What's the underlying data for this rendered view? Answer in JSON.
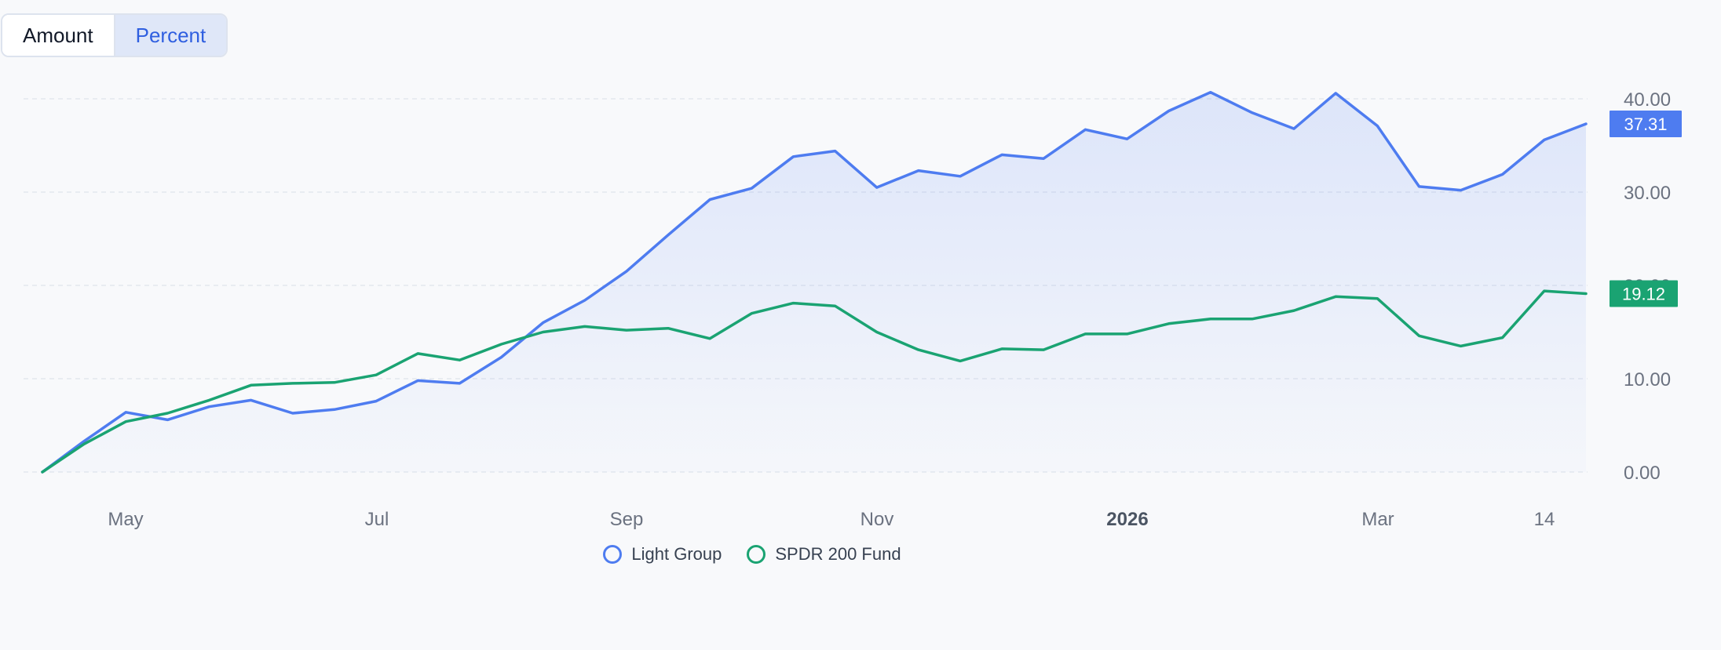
{
  "toggle": {
    "amount_label": "Amount",
    "percent_label": "Percent",
    "selected": "Percent"
  },
  "chart_data": {
    "type": "area",
    "x_tick_labels": [
      "May",
      "Jul",
      "Sep",
      "Nov",
      "2026",
      "Mar",
      "14"
    ],
    "y_tick_labels": [
      "0.00",
      "10.00",
      "20.00",
      "30.00",
      "40.00"
    ],
    "ylim": [
      0,
      40
    ],
    "grid": "horizontal dashed",
    "legend_position": "bottom-center",
    "series": [
      {
        "name": "Light Group",
        "color": "#4e7cf0",
        "fill": true,
        "last_value_label": "37.31",
        "values": [
          0.0,
          3.3,
          6.4,
          5.6,
          7.0,
          7.7,
          6.3,
          6.7,
          7.6,
          9.8,
          9.5,
          12.3,
          16.0,
          18.4,
          21.5,
          25.4,
          29.2,
          30.4,
          33.8,
          34.4,
          30.5,
          32.3,
          31.7,
          34.0,
          33.6,
          36.7,
          35.7,
          38.7,
          40.7,
          38.5,
          36.8,
          40.6,
          37.1,
          30.6,
          30.2,
          31.9,
          35.6,
          37.31
        ]
      },
      {
        "name": "SPDR 200 Fund",
        "color": "#1aa372",
        "fill": false,
        "last_value_label": "19.12",
        "values": [
          0.0,
          3.0,
          5.4,
          6.3,
          7.7,
          9.3,
          9.5,
          9.6,
          10.4,
          12.7,
          12.0,
          13.7,
          15.0,
          15.6,
          15.2,
          15.4,
          14.3,
          17.0,
          18.1,
          17.8,
          15.0,
          13.1,
          11.9,
          13.2,
          13.1,
          14.8,
          14.8,
          15.9,
          16.4,
          16.4,
          17.3,
          18.8,
          18.6,
          14.6,
          13.5,
          14.4,
          19.4,
          19.12
        ]
      }
    ]
  }
}
